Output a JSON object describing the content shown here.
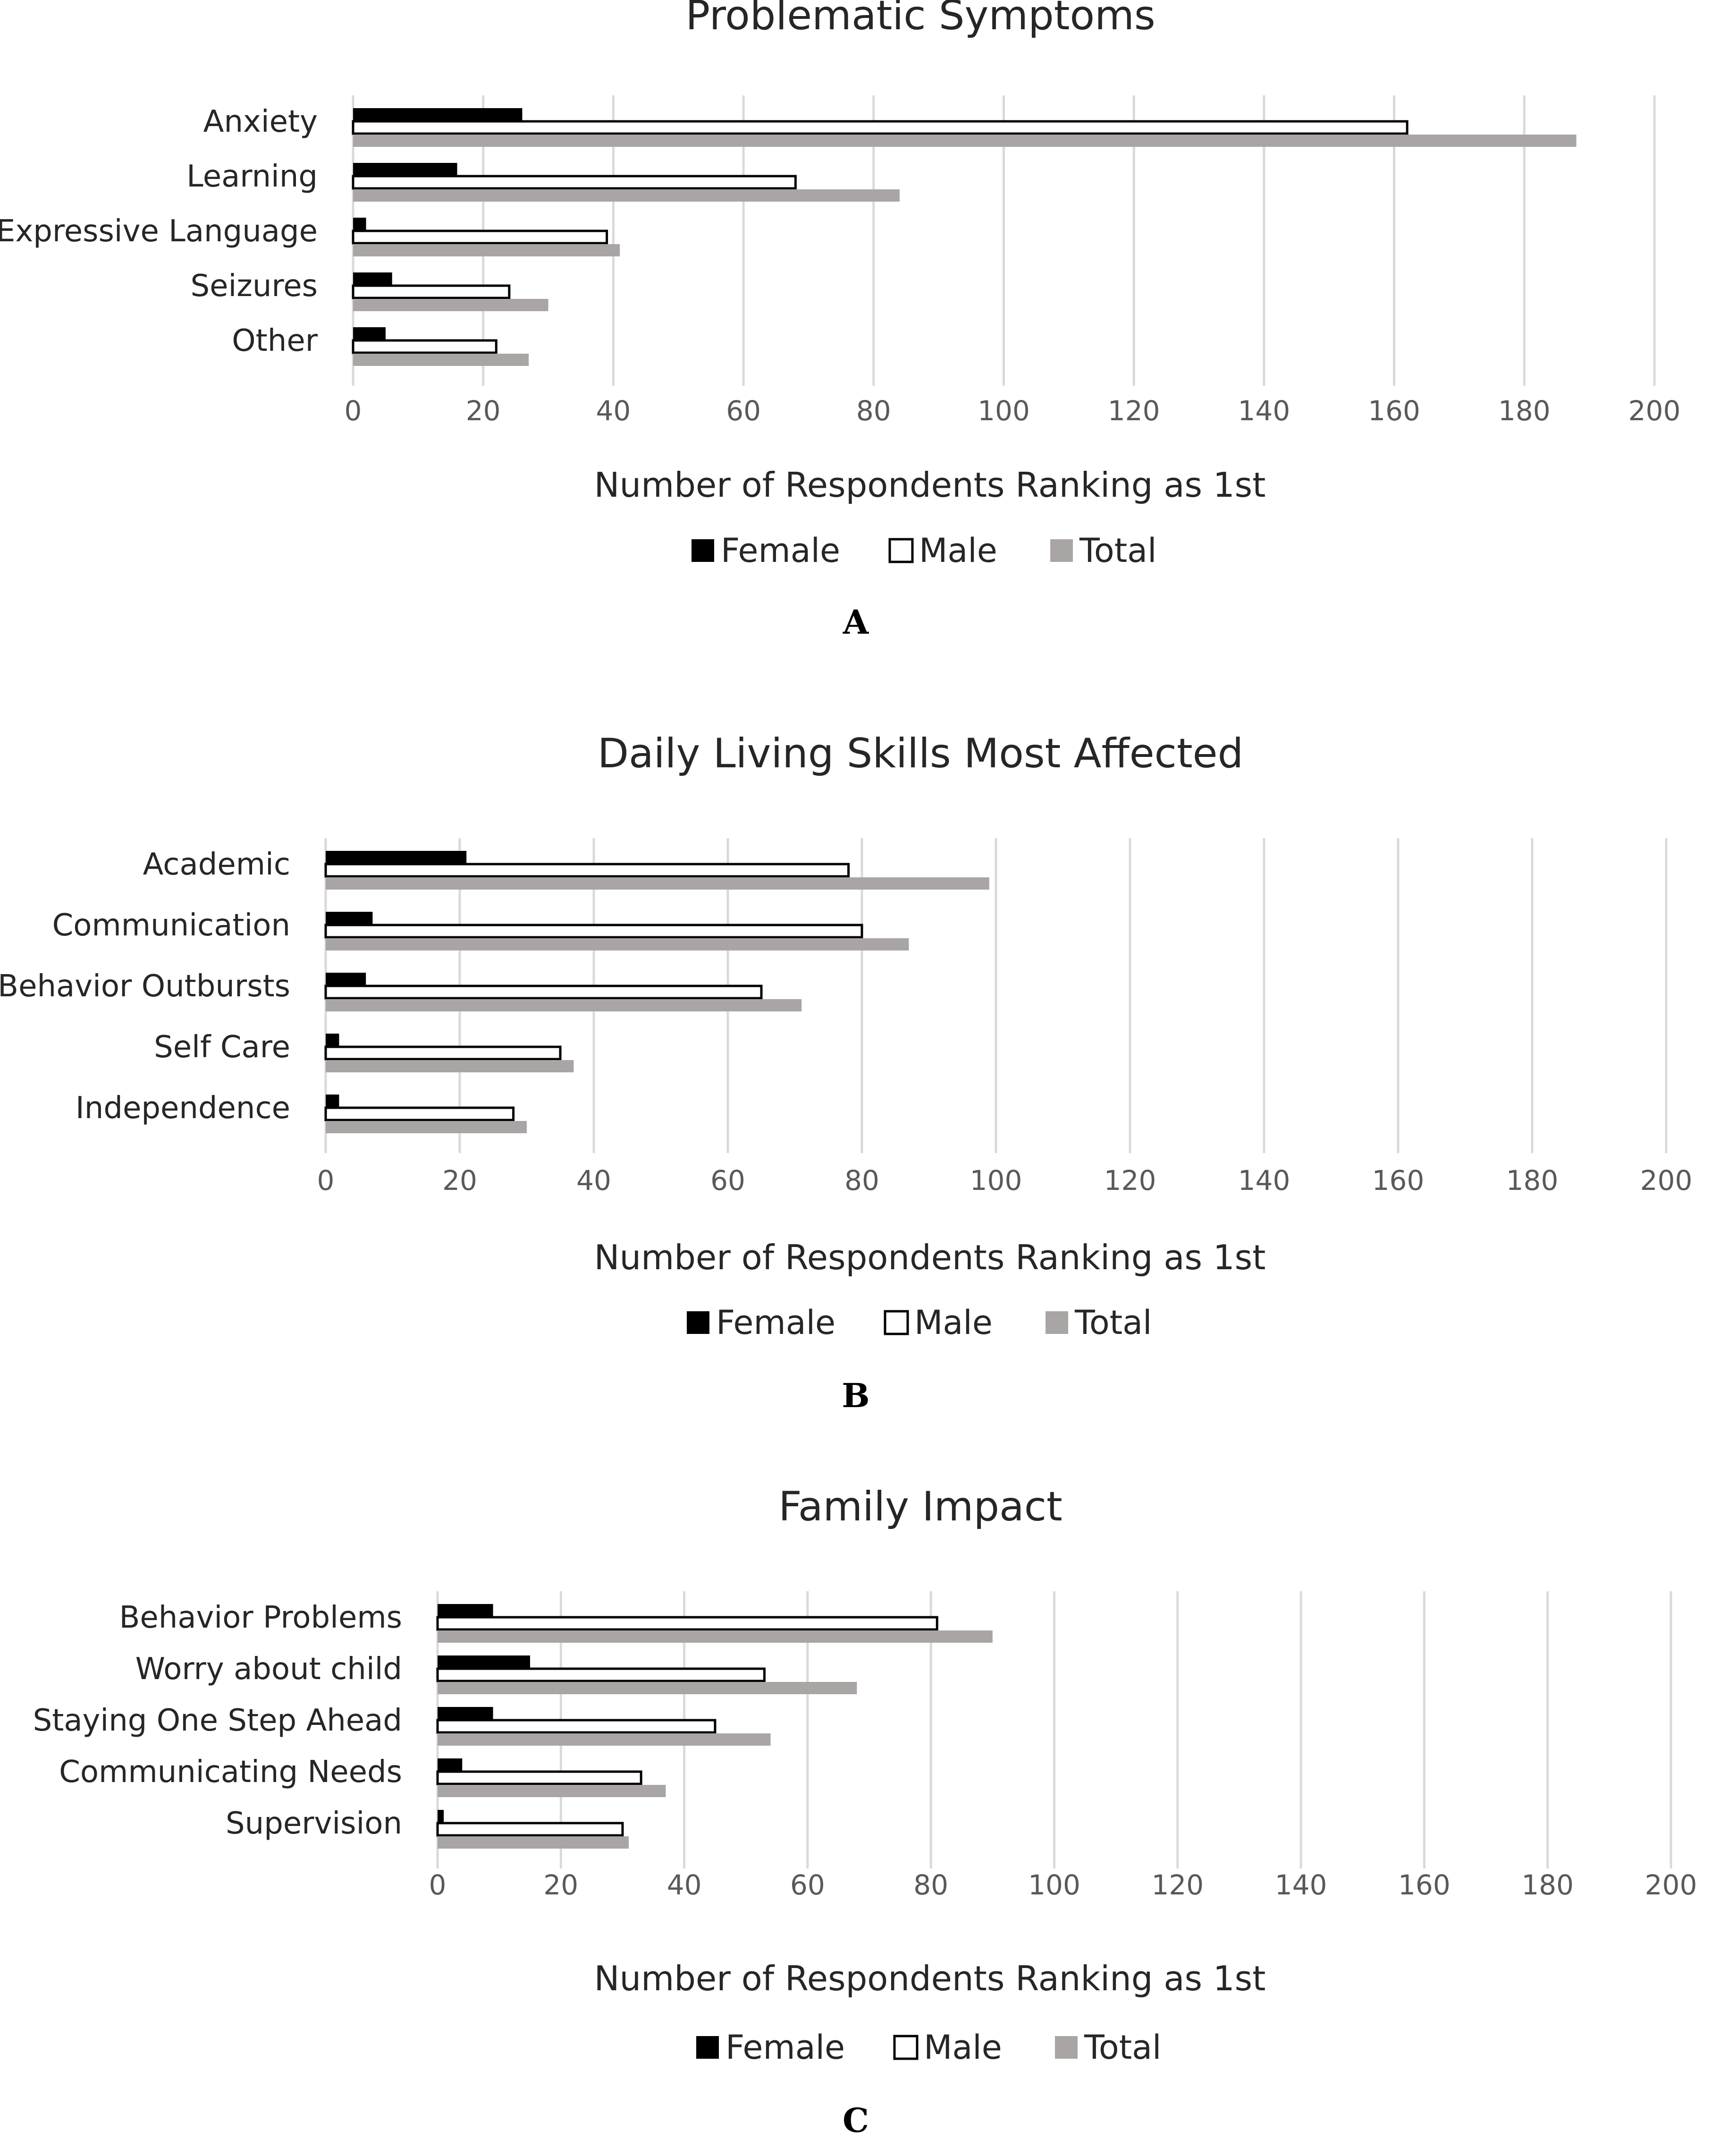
{
  "chart_data": [
    {
      "type": "bar",
      "orientation": "horizontal",
      "title": "Problematic Symptoms",
      "categories": [
        "Anxiety",
        "Learning",
        "Expressive Language",
        "Seizures",
        "Other"
      ],
      "series": [
        {
          "name": "Female",
          "values": [
            26,
            16,
            2,
            6,
            5
          ]
        },
        {
          "name": "Male",
          "values": [
            162,
            68,
            39,
            24,
            22
          ]
        },
        {
          "name": "Total",
          "values": [
            188,
            84,
            41,
            30,
            27
          ]
        }
      ],
      "xlabel": "Number of Respondents Ranking as 1st",
      "xlim": [
        0,
        200
      ],
      "xticks": [
        0,
        20,
        40,
        60,
        80,
        100,
        120,
        140,
        160,
        180,
        200
      ],
      "grid": "vertical",
      "legend": "bottom",
      "panel_label": "A"
    },
    {
      "type": "bar",
      "orientation": "horizontal",
      "title": "Daily Living Skills Most Affected",
      "categories": [
        "Academic",
        "Communication",
        "Behavior Outbursts",
        "Self Care",
        "Independence"
      ],
      "series": [
        {
          "name": "Female",
          "values": [
            21,
            7,
            6,
            2,
            2
          ]
        },
        {
          "name": "Male",
          "values": [
            78,
            80,
            65,
            35,
            28
          ]
        },
        {
          "name": "Total",
          "values": [
            99,
            87,
            71,
            37,
            30
          ]
        }
      ],
      "xlabel": "Number of Respondents Ranking as 1st",
      "xlim": [
        0,
        200
      ],
      "xticks": [
        0,
        20,
        40,
        60,
        80,
        100,
        120,
        140,
        160,
        180,
        200
      ],
      "grid": "vertical",
      "legend": "bottom",
      "panel_label": "B"
    },
    {
      "type": "bar",
      "orientation": "horizontal",
      "title": "Family Impact",
      "categories": [
        "Behavior Problems",
        "Worry about child",
        "Staying One Step Ahead",
        "Communicating Needs",
        "Supervision"
      ],
      "series": [
        {
          "name": "Female",
          "values": [
            9,
            15,
            9,
            4,
            1
          ]
        },
        {
          "name": "Male",
          "values": [
            81,
            53,
            45,
            33,
            30
          ]
        },
        {
          "name": "Total",
          "values": [
            90,
            68,
            54,
            37,
            31
          ]
        }
      ],
      "xlabel": "Number of Respondents Ranking as 1st",
      "xlim": [
        0,
        200
      ],
      "xticks": [
        0,
        20,
        40,
        60,
        80,
        100,
        120,
        140,
        160,
        180,
        200
      ],
      "grid": "vertical",
      "legend": "bottom",
      "panel_label": "C"
    }
  ],
  "colors": {
    "Female": "#000000",
    "Male": "#ffffff",
    "Total": "#a9a5a5",
    "grid": "#d9d9d9",
    "text": "#262626",
    "tick": "#595959"
  }
}
